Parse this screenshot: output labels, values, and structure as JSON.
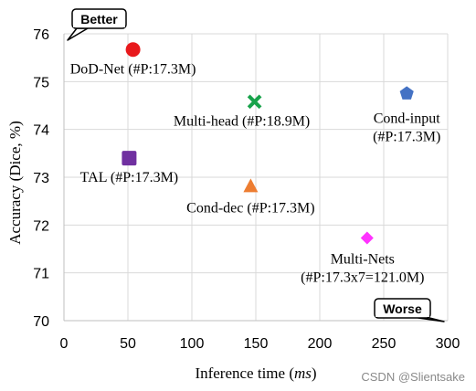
{
  "chart_data": {
    "type": "scatter",
    "xlabel_prefix": "Inference time (",
    "xlabel_unit": "ms",
    "xlabel_suffix": ")",
    "ylabel": "Accuracy (Dice, %)",
    "xlim": [
      0,
      300
    ],
    "ylim": [
      70,
      76
    ],
    "xticks": [
      0,
      50,
      100,
      150,
      200,
      250,
      300
    ],
    "yticks": [
      70,
      71,
      72,
      73,
      74,
      75,
      76
    ],
    "grid": true,
    "points": [
      {
        "label_lines": [
          "DoD-Net (#P:17.3M)"
        ],
        "x": 54,
        "y": 75.67,
        "color": "#e8191c",
        "marker": "circle"
      },
      {
        "label_lines": [
          "Multi-head (#P:18.9M)"
        ],
        "x": 149,
        "y": 74.58,
        "color": "#17a24a",
        "marker": "x"
      },
      {
        "label_lines": [
          "Cond-input",
          "(#P:17.3M)"
        ],
        "x": 268,
        "y": 74.75,
        "color": "#4472c4",
        "marker": "pentagon"
      },
      {
        "label_lines": [
          "TAL (#P:17.3M)"
        ],
        "x": 51,
        "y": 73.4,
        "color": "#7030a0",
        "marker": "square"
      },
      {
        "label_lines": [
          "Cond-dec (#P:17.3M)"
        ],
        "x": 146,
        "y": 72.82,
        "color": "#ed7d31",
        "marker": "triangle"
      },
      {
        "label_lines": [
          "Multi-Nets",
          "(#P:17.3x7=121.0M)"
        ],
        "x": 237,
        "y": 71.73,
        "color": "#ff33ff",
        "marker": "diamond"
      }
    ],
    "callouts": {
      "better": "Better",
      "worse": "Worse"
    }
  },
  "watermark": "CSDN @Slientsake"
}
